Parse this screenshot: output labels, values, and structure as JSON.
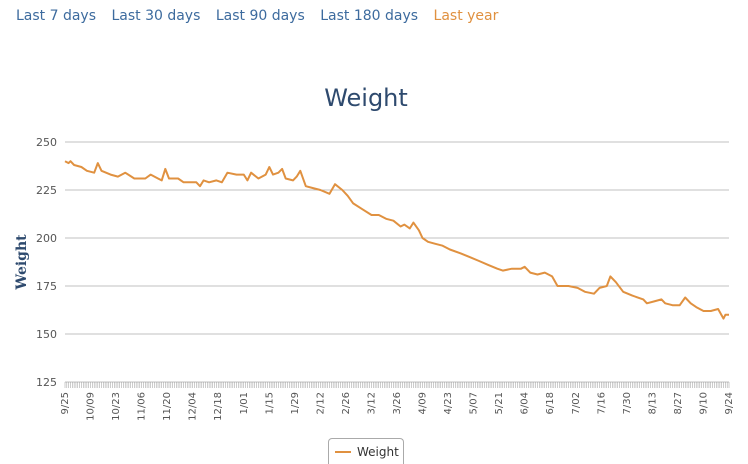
{
  "tabs": [
    {
      "label": "Last 7 days",
      "active": false
    },
    {
      "label": "Last 30 days",
      "active": false
    },
    {
      "label": "Last 90 days",
      "active": false
    },
    {
      "label": "Last 180 days",
      "active": false
    },
    {
      "label": "Last year",
      "active": true
    }
  ],
  "colors": {
    "series": "#e09140",
    "tab": "#3d6b9e",
    "tab_active": "#e09140",
    "grid": "#c0c0c0",
    "title": "#2e4a6e"
  },
  "chart_data": {
    "type": "line",
    "title": "Weight",
    "xlabel": "",
    "ylabel": "Weight",
    "ylim": [
      125,
      250
    ],
    "yticks": [
      125,
      150,
      175,
      200,
      225,
      250
    ],
    "grid": "horizontal",
    "legend": "bottom-center",
    "x_start": "2016-09-25",
    "x_end": "2017-09-24",
    "xtick_labels": [
      "9/25",
      "10/09",
      "10/23",
      "11/06",
      "11/20",
      "12/04",
      "12/18",
      "1/01",
      "1/15",
      "1/29",
      "2/12",
      "2/26",
      "3/12",
      "3/26",
      "4/09",
      "4/23",
      "5/07",
      "5/21",
      "6/04",
      "6/18",
      "7/02",
      "7/16",
      "7/30",
      "8/13",
      "8/27",
      "9/10",
      "9/24"
    ],
    "series": [
      {
        "name": "Weight",
        "points": [
          [
            "2016-09-25",
            240
          ],
          [
            "2016-09-27",
            239
          ],
          [
            "2016-09-28",
            240
          ],
          [
            "2016-09-30",
            238
          ],
          [
            "2016-10-04",
            237
          ],
          [
            "2016-10-07",
            235
          ],
          [
            "2016-10-11",
            234
          ],
          [
            "2016-10-13",
            239
          ],
          [
            "2016-10-15",
            235
          ],
          [
            "2016-10-20",
            233
          ],
          [
            "2016-10-24",
            232
          ],
          [
            "2016-10-28",
            234
          ],
          [
            "2016-11-02",
            231
          ],
          [
            "2016-11-08",
            231
          ],
          [
            "2016-11-11",
            233
          ],
          [
            "2016-11-15",
            231
          ],
          [
            "2016-11-17",
            230
          ],
          [
            "2016-11-19",
            236
          ],
          [
            "2016-11-21",
            231
          ],
          [
            "2016-11-26",
            231
          ],
          [
            "2016-11-29",
            229
          ],
          [
            "2016-12-03",
            229
          ],
          [
            "2016-12-06",
            229
          ],
          [
            "2016-12-08",
            227
          ],
          [
            "2016-12-10",
            230
          ],
          [
            "2016-12-13",
            229
          ],
          [
            "2016-12-17",
            230
          ],
          [
            "2016-12-20",
            229
          ],
          [
            "2016-12-23",
            234
          ],
          [
            "2016-12-28",
            233
          ],
          [
            "2017-01-01",
            233
          ],
          [
            "2017-01-03",
            230
          ],
          [
            "2017-01-05",
            234
          ],
          [
            "2017-01-09",
            231
          ],
          [
            "2017-01-13",
            233
          ],
          [
            "2017-01-15",
            237
          ],
          [
            "2017-01-17",
            233
          ],
          [
            "2017-01-20",
            234
          ],
          [
            "2017-01-22",
            236
          ],
          [
            "2017-01-24",
            231
          ],
          [
            "2017-01-28",
            230
          ],
          [
            "2017-01-30",
            232
          ],
          [
            "2017-02-01",
            235
          ],
          [
            "2017-02-04",
            227
          ],
          [
            "2017-02-08",
            226
          ],
          [
            "2017-02-12",
            225
          ],
          [
            "2017-02-17",
            223
          ],
          [
            "2017-02-20",
            228
          ],
          [
            "2017-02-24",
            225
          ],
          [
            "2017-02-27",
            222
          ],
          [
            "2017-03-02",
            218
          ],
          [
            "2017-03-07",
            215
          ],
          [
            "2017-03-12",
            212
          ],
          [
            "2017-03-16",
            212
          ],
          [
            "2017-03-20",
            210
          ],
          [
            "2017-03-24",
            209
          ],
          [
            "2017-03-28",
            206
          ],
          [
            "2017-03-30",
            207
          ],
          [
            "2017-04-02",
            205
          ],
          [
            "2017-04-04",
            208
          ],
          [
            "2017-04-07",
            204
          ],
          [
            "2017-04-09",
            200
          ],
          [
            "2017-04-12",
            198
          ],
          [
            "2017-04-16",
            197
          ],
          [
            "2017-04-20",
            196
          ],
          [
            "2017-04-24",
            194
          ],
          [
            "2017-04-30",
            192
          ],
          [
            "2017-05-05",
            190
          ],
          [
            "2017-05-10",
            188
          ],
          [
            "2017-05-15",
            186
          ],
          [
            "2017-05-20",
            184
          ],
          [
            "2017-05-23",
            183
          ],
          [
            "2017-05-28",
            184
          ],
          [
            "2017-06-02",
            184
          ],
          [
            "2017-06-04",
            185
          ],
          [
            "2017-06-07",
            182
          ],
          [
            "2017-06-11",
            181
          ],
          [
            "2017-06-15",
            182
          ],
          [
            "2017-06-19",
            180
          ],
          [
            "2017-06-22",
            175
          ],
          [
            "2017-06-28",
            175
          ],
          [
            "2017-07-03",
            174
          ],
          [
            "2017-07-07",
            172
          ],
          [
            "2017-07-12",
            171
          ],
          [
            "2017-07-15",
            174
          ],
          [
            "2017-07-19",
            175
          ],
          [
            "2017-07-21",
            180
          ],
          [
            "2017-07-24",
            177
          ],
          [
            "2017-07-28",
            172
          ],
          [
            "2017-08-02",
            170
          ],
          [
            "2017-08-08",
            168
          ],
          [
            "2017-08-10",
            166
          ],
          [
            "2017-08-14",
            167
          ],
          [
            "2017-08-18",
            168
          ],
          [
            "2017-08-20",
            166
          ],
          [
            "2017-08-24",
            165
          ],
          [
            "2017-08-28",
            165
          ],
          [
            "2017-08-31",
            169
          ],
          [
            "2017-09-03",
            166
          ],
          [
            "2017-09-06",
            164
          ],
          [
            "2017-09-10",
            162
          ],
          [
            "2017-09-14",
            162
          ],
          [
            "2017-09-18",
            163
          ],
          [
            "2017-09-21",
            158
          ],
          [
            "2017-09-22",
            160
          ],
          [
            "2017-09-24",
            160
          ]
        ]
      }
    ]
  }
}
